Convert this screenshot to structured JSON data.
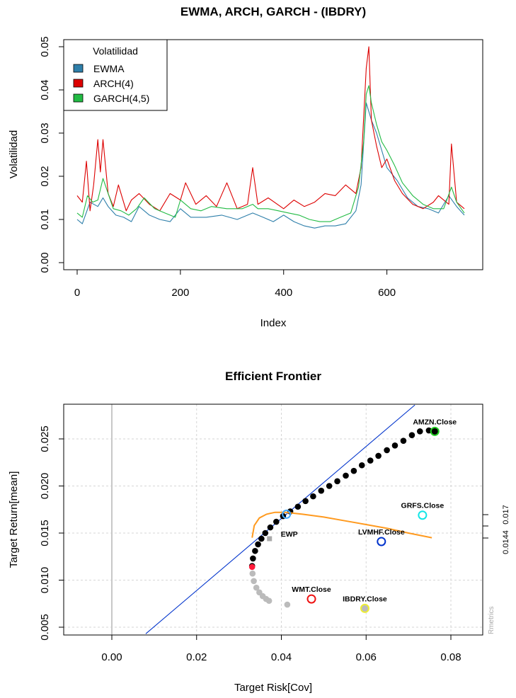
{
  "chart_data": [
    {
      "type": "line",
      "title": "EWMA, ARCH, GARCH - (IBDRY)",
      "xlabel": "Index",
      "ylabel": "Volatilidad",
      "xlim": [
        0,
        750
      ],
      "ylim": [
        0,
        0.05
      ],
      "x_ticks": [
        "0",
        "200",
        "400",
        "600"
      ],
      "x_tick_values": [
        0,
        200,
        400,
        600
      ],
      "y_ticks": [
        "0.00",
        "0.01",
        "0.02",
        "0.03",
        "0.04",
        "0.05"
      ],
      "y_tick_values": [
        0,
        0.01,
        0.02,
        0.03,
        0.04,
        0.05
      ],
      "legend": {
        "title": "Volatilidad",
        "placement": "top-left",
        "entries": [
          "EWMA",
          "ARCH(4)",
          "GARCH(4,5)"
        ]
      },
      "grid": false,
      "series": [
        {
          "name": "EWMA",
          "color": "#2e7faa",
          "x": [
            0,
            10,
            25,
            40,
            50,
            60,
            75,
            90,
            105,
            120,
            140,
            160,
            180,
            200,
            220,
            250,
            280,
            310,
            340,
            360,
            380,
            400,
            420,
            440,
            460,
            480,
            500,
            520,
            540,
            550,
            560,
            570,
            580,
            590,
            600,
            620,
            640,
            660,
            680,
            700,
            720,
            735,
            750
          ],
          "values": [
            0.01,
            0.009,
            0.014,
            0.013,
            0.015,
            0.013,
            0.011,
            0.0105,
            0.0095,
            0.013,
            0.011,
            0.01,
            0.0095,
            0.0125,
            0.0105,
            0.0105,
            0.011,
            0.01,
            0.0115,
            0.0105,
            0.0095,
            0.011,
            0.0095,
            0.0085,
            0.008,
            0.0085,
            0.0085,
            0.009,
            0.012,
            0.018,
            0.037,
            0.033,
            0.03,
            0.026,
            0.022,
            0.019,
            0.015,
            0.013,
            0.0125,
            0.0115,
            0.0155,
            0.013,
            0.011
          ]
        },
        {
          "name": "ARCH(4)",
          "color": "#dd0000",
          "x": [
            0,
            10,
            18,
            25,
            32,
            40,
            45,
            50,
            60,
            70,
            80,
            95,
            105,
            120,
            140,
            160,
            180,
            200,
            210,
            230,
            250,
            270,
            290,
            310,
            330,
            340,
            350,
            370,
            400,
            420,
            440,
            460,
            480,
            500,
            520,
            540,
            550,
            560,
            565,
            570,
            580,
            590,
            600,
            615,
            630,
            650,
            670,
            690,
            700,
            720,
            725,
            735,
            750
          ],
          "values": [
            0.0155,
            0.014,
            0.0235,
            0.012,
            0.018,
            0.0285,
            0.021,
            0.0285,
            0.016,
            0.013,
            0.018,
            0.012,
            0.0145,
            0.016,
            0.0135,
            0.012,
            0.016,
            0.0145,
            0.0185,
            0.0135,
            0.0155,
            0.013,
            0.0185,
            0.0125,
            0.0135,
            0.022,
            0.0135,
            0.015,
            0.0125,
            0.0145,
            0.013,
            0.014,
            0.016,
            0.0155,
            0.018,
            0.016,
            0.022,
            0.045,
            0.05,
            0.033,
            0.027,
            0.022,
            0.024,
            0.019,
            0.016,
            0.0135,
            0.0125,
            0.014,
            0.0155,
            0.0135,
            0.0275,
            0.014,
            0.0125
          ]
        },
        {
          "name": "GARCH(4,5)",
          "color": "#22bb44",
          "x": [
            0,
            10,
            20,
            30,
            40,
            50,
            60,
            70,
            85,
            100,
            115,
            130,
            150,
            170,
            190,
            200,
            220,
            240,
            260,
            290,
            320,
            340,
            350,
            370,
            390,
            410,
            430,
            450,
            470,
            490,
            510,
            530,
            545,
            555,
            560,
            565,
            570,
            580,
            590,
            600,
            615,
            630,
            650,
            670,
            690,
            710,
            725,
            735,
            750
          ],
          "values": [
            0.0115,
            0.0105,
            0.0155,
            0.014,
            0.0145,
            0.0195,
            0.016,
            0.0125,
            0.012,
            0.011,
            0.0125,
            0.015,
            0.0125,
            0.0115,
            0.0105,
            0.0145,
            0.0125,
            0.012,
            0.013,
            0.0125,
            0.0125,
            0.0135,
            0.0125,
            0.0125,
            0.012,
            0.0115,
            0.011,
            0.01,
            0.0095,
            0.0095,
            0.0105,
            0.0115,
            0.0175,
            0.028,
            0.039,
            0.041,
            0.037,
            0.032,
            0.028,
            0.026,
            0.0225,
            0.0185,
            0.0155,
            0.0135,
            0.0125,
            0.0125,
            0.0175,
            0.014,
            0.0115
          ]
        }
      ]
    },
    {
      "type": "scatter",
      "title": "Efficient Frontier",
      "xlabel": "Target Risk[Cov]",
      "ylabel": "Target Return[mean]",
      "xlim": [
        -0.012,
        0.087
      ],
      "ylim": [
        0.0042,
        0.0285
      ],
      "x_ticks": [
        "0.00",
        "0.02",
        "0.04",
        "0.06",
        "0.08"
      ],
      "x_tick_values": [
        0,
        0.02,
        0.04,
        0.06,
        0.08
      ],
      "y_ticks": [
        "0.005",
        "0.010",
        "0.015",
        "0.020",
        "0.025"
      ],
      "y_tick_values": [
        0.005,
        0.01,
        0.015,
        0.02,
        0.025
      ],
      "grid": true,
      "right_axis_labels": [
        "0.017",
        "0.0144"
      ],
      "right_axis_values": [
        0.017,
        0.0144
      ],
      "watermark": "Rmetrics",
      "frontier": {
        "upper_color": "#000000",
        "lower_color": "#bbbbbb",
        "upper": [
          [
            0.0331,
            0.0115
          ],
          [
            0.0333,
            0.0123
          ],
          [
            0.0338,
            0.0131
          ],
          [
            0.0345,
            0.0138
          ],
          [
            0.0353,
            0.0144
          ],
          [
            0.0362,
            0.015
          ],
          [
            0.0374,
            0.0156
          ],
          [
            0.0388,
            0.0162
          ],
          [
            0.0404,
            0.0168
          ],
          [
            0.0421,
            0.0173
          ],
          [
            0.0439,
            0.0178
          ],
          [
            0.0457,
            0.0184
          ],
          [
            0.0475,
            0.0189
          ],
          [
            0.0494,
            0.0195
          ],
          [
            0.0513,
            0.02
          ],
          [
            0.0532,
            0.0205
          ],
          [
            0.0552,
            0.0211
          ],
          [
            0.0571,
            0.0216
          ],
          [
            0.059,
            0.0222
          ],
          [
            0.061,
            0.0227
          ],
          [
            0.0629,
            0.0232
          ],
          [
            0.0649,
            0.0238
          ],
          [
            0.0668,
            0.0243
          ],
          [
            0.0688,
            0.0248
          ],
          [
            0.0708,
            0.0254
          ],
          [
            0.0727,
            0.0258
          ],
          [
            0.0748,
            0.0259
          ]
        ],
        "lower": [
          [
            0.0332,
            0.0107
          ],
          [
            0.0335,
            0.0099
          ],
          [
            0.0341,
            0.0092
          ],
          [
            0.0348,
            0.0087
          ],
          [
            0.0356,
            0.0083
          ],
          [
            0.0364,
            0.008
          ],
          [
            0.0371,
            0.0078
          ],
          [
            0.0414,
            0.0074
          ]
        ]
      },
      "tangency_line": {
        "color": "#0033cc",
        "x": [
          0.008,
          0.0715
        ],
        "y": [
          0.0043,
          0.0286
        ]
      },
      "sharpe_curve": {
        "color": "#ff9a1f",
        "x": [
          0.0331,
          0.0336,
          0.0348,
          0.0365,
          0.0385,
          0.041,
          0.045,
          0.05,
          0.055,
          0.06,
          0.065,
          0.07,
          0.0755
        ],
        "y": [
          0.0145,
          0.0158,
          0.0166,
          0.017,
          0.0172,
          0.0172,
          0.017,
          0.0167,
          0.0163,
          0.0159,
          0.0155,
          0.015,
          0.0145
        ]
      },
      "special_points": [
        {
          "label": "EWP",
          "x": 0.0372,
          "y": 0.0144,
          "style": "square",
          "color": "#aaaaaa"
        },
        {
          "label": "",
          "x": 0.0331,
          "y": 0.0114,
          "style": "dot",
          "color": "#ff1a3a"
        },
        {
          "label": "",
          "x": 0.0412,
          "y": 0.017,
          "style": "ring",
          "color": "#44aaff"
        }
      ],
      "assets": [
        {
          "label": "AMZN.Close",
          "x": 0.0762,
          "y": 0.0258,
          "color": "#22cc22",
          "filled": true
        },
        {
          "label": "GRFS.Close",
          "x": 0.0733,
          "y": 0.0169,
          "color": "#11e6e6",
          "filled": false
        },
        {
          "label": "LVMHF.Close",
          "x": 0.0636,
          "y": 0.0141,
          "color": "#0033cc",
          "filled": false
        },
        {
          "label": "WMT.Close",
          "x": 0.0471,
          "y": 0.008,
          "color": "#ee1111",
          "filled": false
        },
        {
          "label": "IBDRY.Close",
          "x": 0.0597,
          "y": 0.007,
          "color": "#eeee33",
          "filled": false
        }
      ]
    }
  ]
}
